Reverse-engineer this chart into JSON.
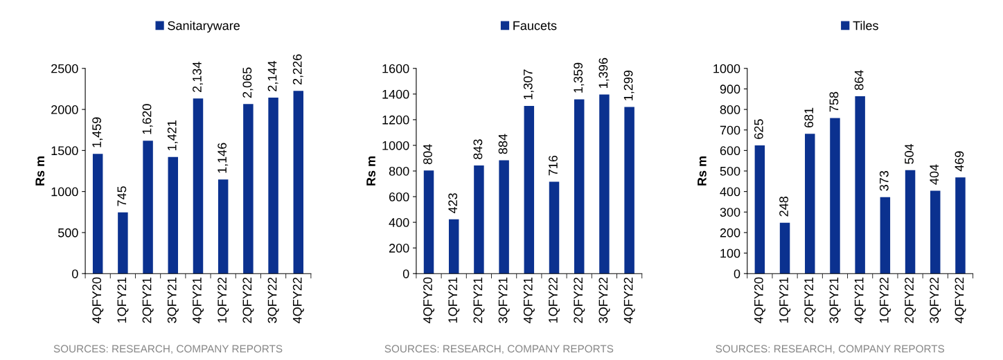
{
  "chart_data": [
    {
      "type": "bar",
      "ylabel": "Rs m",
      "categories": [
        "4QFY20",
        "1QFY21",
        "2QFY21",
        "3QFY21",
        "4QFY21",
        "1QFY22",
        "2QFY22",
        "3QFY22",
        "4QFY22"
      ],
      "series": [
        {
          "name": "Sanitaryware",
          "color": "#0b318f",
          "values": [
            1459,
            745,
            1620,
            1421,
            2134,
            1146,
            2065,
            2144,
            2226
          ]
        }
      ],
      "value_labels": [
        "1,459",
        "745",
        "1,620",
        "1,421",
        "2,134",
        "1,146",
        "2,065",
        "2,144",
        "2,226"
      ],
      "ylim": [
        0,
        2500
      ],
      "yticks": [
        0,
        500,
        1000,
        1500,
        2000,
        2500
      ],
      "legend": "top",
      "grid": false,
      "annotations": [
        "SOURCES: RESEARCH, COMPANY REPORTS"
      ]
    },
    {
      "type": "bar",
      "ylabel": "Rs m",
      "categories": [
        "4QFY20",
        "1QFY21",
        "2QFY21",
        "3QFY21",
        "4QFY21",
        "1QFY22",
        "2QFY22",
        "3QFY22",
        "4QFY22"
      ],
      "series": [
        {
          "name": "Faucets",
          "color": "#0b318f",
          "values": [
            804,
            423,
            843,
            884,
            1307,
            716,
            1359,
            1396,
            1299
          ]
        }
      ],
      "value_labels": [
        "804",
        "423",
        "843",
        "884",
        "1,307",
        "716",
        "1,359",
        "1,396",
        "1,299"
      ],
      "ylim": [
        0,
        1600
      ],
      "yticks": [
        0,
        200,
        400,
        600,
        800,
        1000,
        1200,
        1400,
        1600
      ],
      "legend": "top",
      "grid": false,
      "annotations": [
        "SOURCES: RESEARCH, COMPANY REPORTS"
      ]
    },
    {
      "type": "bar",
      "ylabel": "Rs m",
      "categories": [
        "4QFY20",
        "1QFY21",
        "2QFY21",
        "3QFY21",
        "4QFY21",
        "1QFY22",
        "2QFY22",
        "3QFY22",
        "4QFY22"
      ],
      "series": [
        {
          "name": "Tiles",
          "color": "#0b318f",
          "values": [
            625,
            248,
            681,
            758,
            864,
            373,
            504,
            404,
            469
          ]
        }
      ],
      "value_labels": [
        "625",
        "248",
        "681",
        "758",
        "864",
        "373",
        "504",
        "404",
        "469"
      ],
      "ylim": [
        0,
        1000
      ],
      "yticks": [
        0,
        100,
        200,
        300,
        400,
        500,
        600,
        700,
        800,
        900,
        1000
      ],
      "legend": "top",
      "grid": false,
      "annotations": [
        "SOURCES: RESEARCH, COMPANY REPORTS"
      ]
    }
  ]
}
